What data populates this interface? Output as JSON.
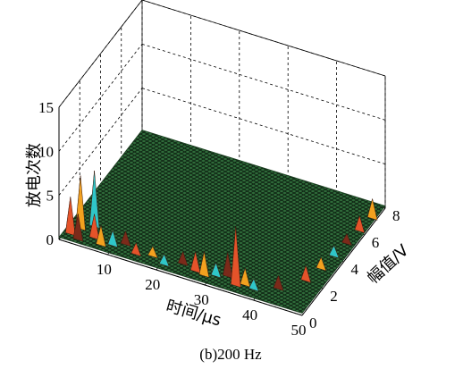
{
  "chart_data": {
    "type": "3d-surface",
    "caption": "(b)200 Hz",
    "xlabel": "时间/μs",
    "ylabel": "幅值/V",
    "zlabel": "放电次数",
    "x_ticks": [
      "10",
      "20",
      "30",
      "40",
      "50"
    ],
    "y_ticks": [
      "0",
      "2",
      "4",
      "6",
      "8"
    ],
    "z_ticks": [
      "0",
      "5",
      "10",
      "15"
    ],
    "xlim": [
      0,
      50
    ],
    "ylim": [
      0,
      8
    ],
    "zlim": [
      0,
      15
    ],
    "grid": true,
    "surface_color": "#2f6b3a",
    "peak_colors": [
      "#e4532a",
      "#f2a11f",
      "#2fc6c8",
      "#7b2a1a"
    ],
    "peaks": [
      {
        "x": 1.5,
        "y": 0.4,
        "z": 4.5
      },
      {
        "x": 2.5,
        "y": 0.9,
        "z": 6.3
      },
      {
        "x": 4.5,
        "y": 1.3,
        "z": 6.6
      },
      {
        "x": 3.5,
        "y": 0.2,
        "z": 3.2
      },
      {
        "x": 6.0,
        "y": 0.6,
        "z": 3.0
      },
      {
        "x": 8.0,
        "y": 0.3,
        "z": 2.5
      },
      {
        "x": 10.0,
        "y": 0.5,
        "z": 2.0
      },
      {
        "x": 12.0,
        "y": 0.8,
        "z": 1.8
      },
      {
        "x": 15.0,
        "y": 0.4,
        "z": 1.6
      },
      {
        "x": 18.0,
        "y": 0.6,
        "z": 1.4
      },
      {
        "x": 21.0,
        "y": 0.3,
        "z": 1.5
      },
      {
        "x": 24.0,
        "y": 0.7,
        "z": 1.7
      },
      {
        "x": 27.0,
        "y": 0.5,
        "z": 2.5
      },
      {
        "x": 29.0,
        "y": 0.4,
        "z": 3.0
      },
      {
        "x": 31.0,
        "y": 0.6,
        "z": 1.8
      },
      {
        "x": 33.0,
        "y": 0.8,
        "z": 3.0
      },
      {
        "x": 35.5,
        "y": 0.4,
        "z": 7.0
      },
      {
        "x": 37.0,
        "y": 0.6,
        "z": 2.2
      },
      {
        "x": 39.0,
        "y": 0.5,
        "z": 1.5
      },
      {
        "x": 43.0,
        "y": 1.0,
        "z": 1.8
      },
      {
        "x": 46.5,
        "y": 2.0,
        "z": 2.0
      },
      {
        "x": 47.5,
        "y": 3.0,
        "z": 1.6
      },
      {
        "x": 48.0,
        "y": 4.0,
        "z": 1.5
      },
      {
        "x": 48.5,
        "y": 5.0,
        "z": 1.4
      },
      {
        "x": 49.0,
        "y": 6.0,
        "z": 2.0
      },
      {
        "x": 49.5,
        "y": 7.0,
        "z": 2.5
      }
    ]
  }
}
